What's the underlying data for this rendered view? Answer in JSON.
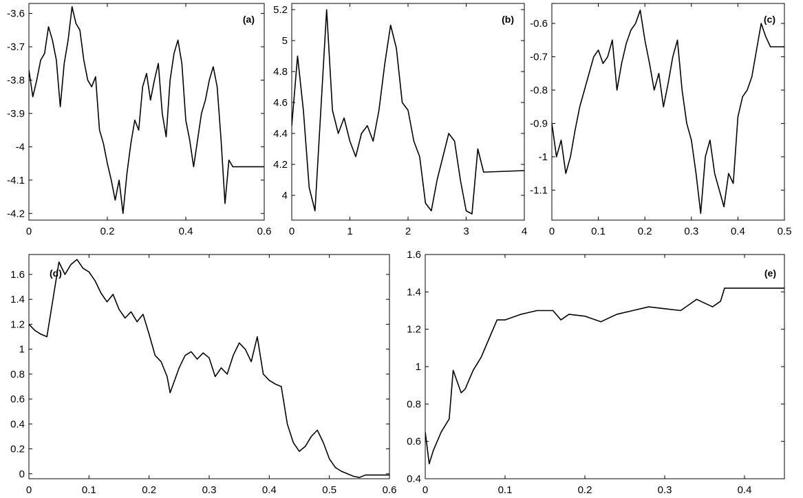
{
  "chart_data": [
    {
      "type": "line",
      "panel_label": "(a)",
      "xlim": [
        0,
        0.6
      ],
      "ylim": [
        -4.22,
        -3.57
      ],
      "xticks": [
        0,
        0.2,
        0.4,
        0.6
      ],
      "xtick_labels": [
        "0",
        "0.2",
        "0.4",
        "0.6"
      ],
      "yticks": [
        -3.6,
        -3.7,
        -3.8,
        -3.9,
        -4.0,
        -4.1,
        -4.2
      ],
      "ytick_labels": [
        "-3.6",
        "-3.7",
        "-3.8",
        "-3.9",
        "-4",
        "-4.1",
        "-4.2"
      ],
      "series": [
        {
          "x": [
            0,
            0.01,
            0.02,
            0.03,
            0.04,
            0.05,
            0.06,
            0.07,
            0.08,
            0.09,
            0.1,
            0.11,
            0.12,
            0.13,
            0.14,
            0.15,
            0.16,
            0.17,
            0.18,
            0.19,
            0.2,
            0.21,
            0.22,
            0.23,
            0.24,
            0.25,
            0.26,
            0.27,
            0.28,
            0.29,
            0.3,
            0.31,
            0.32,
            0.33,
            0.34,
            0.35,
            0.36,
            0.37,
            0.38,
            0.39,
            0.4,
            0.41,
            0.42,
            0.43,
            0.44,
            0.45,
            0.46,
            0.47,
            0.48,
            0.49,
            0.5,
            0.51,
            0.52,
            0.6
          ],
          "y": [
            -3.77,
            -3.85,
            -3.8,
            -3.74,
            -3.72,
            -3.64,
            -3.68,
            -3.74,
            -3.88,
            -3.75,
            -3.68,
            -3.58,
            -3.63,
            -3.65,
            -3.74,
            -3.8,
            -3.82,
            -3.79,
            -3.95,
            -3.99,
            -4.05,
            -4.1,
            -4.16,
            -4.1,
            -4.2,
            -4.08,
            -3.99,
            -3.92,
            -3.95,
            -3.82,
            -3.78,
            -3.86,
            -3.8,
            -3.75,
            -3.9,
            -3.97,
            -3.8,
            -3.72,
            -3.68,
            -3.75,
            -3.92,
            -3.98,
            -4.06,
            -3.98,
            -3.9,
            -3.86,
            -3.8,
            -3.76,
            -3.82,
            -3.98,
            -4.17,
            -4.04,
            -4.06,
            -4.06
          ]
        }
      ]
    },
    {
      "type": "line",
      "panel_label": "(b)",
      "xlim": [
        0,
        4
      ],
      "ylim": [
        3.84,
        5.24
      ],
      "xticks": [
        0,
        1,
        2,
        3,
        4
      ],
      "xtick_labels": [
        "0",
        "1",
        "2",
        "3",
        "4"
      ],
      "yticks": [
        4.0,
        4.2,
        4.4,
        4.6,
        4.8,
        5.0,
        5.2
      ],
      "ytick_labels": [
        "4",
        "4.2",
        "4.4",
        "4.6",
        "4.8",
        "5",
        "5.2"
      ],
      "series": [
        {
          "x": [
            0,
            0.1,
            0.2,
            0.3,
            0.4,
            0.5,
            0.6,
            0.7,
            0.8,
            0.9,
            1.0,
            1.1,
            1.2,
            1.3,
            1.4,
            1.5,
            1.6,
            1.7,
            1.8,
            1.9,
            2.0,
            2.1,
            2.2,
            2.3,
            2.4,
            2.5,
            2.6,
            2.7,
            2.8,
            2.9,
            3.0,
            3.1,
            3.2,
            3.3,
            4.0
          ],
          "y": [
            4.45,
            4.9,
            4.55,
            4.05,
            3.9,
            4.55,
            5.2,
            4.55,
            4.4,
            4.5,
            4.35,
            4.25,
            4.4,
            4.45,
            4.35,
            4.55,
            4.85,
            5.1,
            4.95,
            4.6,
            4.55,
            4.35,
            4.25,
            3.95,
            3.9,
            4.1,
            4.25,
            4.4,
            4.35,
            4.1,
            3.9,
            3.88,
            4.3,
            4.15,
            4.16
          ]
        }
      ]
    },
    {
      "type": "line",
      "panel_label": "(c)",
      "xlim": [
        0,
        0.5
      ],
      "ylim": [
        -1.19,
        -0.54
      ],
      "xticks": [
        0,
        0.1,
        0.2,
        0.3,
        0.4,
        0.5
      ],
      "xtick_labels": [
        "0",
        "0.1",
        "0.2",
        "0.3",
        "0.4",
        "0.5"
      ],
      "yticks": [
        -0.6,
        -0.7,
        -0.8,
        -0.9,
        -1.0,
        -1.1
      ],
      "ytick_labels": [
        "-0.6",
        "-0.7",
        "-0.8",
        "-0.9",
        "-1",
        "-1.1"
      ],
      "series": [
        {
          "x": [
            0,
            0.01,
            0.02,
            0.03,
            0.04,
            0.05,
            0.06,
            0.07,
            0.08,
            0.09,
            0.1,
            0.11,
            0.12,
            0.13,
            0.14,
            0.15,
            0.16,
            0.17,
            0.18,
            0.19,
            0.2,
            0.21,
            0.22,
            0.23,
            0.24,
            0.25,
            0.26,
            0.27,
            0.28,
            0.29,
            0.3,
            0.31,
            0.32,
            0.33,
            0.34,
            0.35,
            0.36,
            0.37,
            0.38,
            0.39,
            0.4,
            0.41,
            0.42,
            0.43,
            0.44,
            0.45,
            0.46,
            0.47,
            0.5
          ],
          "y": [
            -0.9,
            -1.0,
            -0.95,
            -1.05,
            -1.0,
            -0.92,
            -0.85,
            -0.8,
            -0.75,
            -0.7,
            -0.68,
            -0.72,
            -0.7,
            -0.65,
            -0.8,
            -0.72,
            -0.66,
            -0.62,
            -0.6,
            -0.56,
            -0.65,
            -0.72,
            -0.8,
            -0.75,
            -0.85,
            -0.78,
            -0.7,
            -0.65,
            -0.8,
            -0.9,
            -0.95,
            -1.05,
            -1.17,
            -1.0,
            -0.95,
            -1.05,
            -1.1,
            -1.15,
            -1.05,
            -1.08,
            -0.88,
            -0.82,
            -0.8,
            -0.76,
            -0.68,
            -0.6,
            -0.64,
            -0.67,
            -0.67
          ]
        }
      ]
    },
    {
      "type": "line",
      "panel_label": "(d)",
      "xlim": [
        0,
        0.6
      ],
      "ylim": [
        -0.04,
        1.76
      ],
      "xticks": [
        0,
        0.1,
        0.2,
        0.3,
        0.4,
        0.5,
        0.6
      ],
      "xtick_labels": [
        "0",
        "0.1",
        "0.2",
        "0.3",
        "0.4",
        "0.5",
        "0.6"
      ],
      "yticks": [
        0,
        0.2,
        0.4,
        0.6,
        0.8,
        1.0,
        1.2,
        1.4,
        1.6
      ],
      "ytick_labels": [
        "0",
        "0.2",
        "0.4",
        "0.6",
        "0.8",
        "1",
        "1.2",
        "1.4",
        "1.6"
      ],
      "series": [
        {
          "x": [
            0,
            0.01,
            0.02,
            0.03,
            0.04,
            0.05,
            0.06,
            0.07,
            0.08,
            0.09,
            0.1,
            0.11,
            0.12,
            0.13,
            0.14,
            0.15,
            0.16,
            0.17,
            0.18,
            0.19,
            0.2,
            0.21,
            0.22,
            0.23,
            0.235,
            0.25,
            0.26,
            0.27,
            0.28,
            0.29,
            0.3,
            0.31,
            0.32,
            0.33,
            0.34,
            0.35,
            0.36,
            0.37,
            0.38,
            0.39,
            0.4,
            0.41,
            0.42,
            0.43,
            0.44,
            0.45,
            0.46,
            0.47,
            0.48,
            0.49,
            0.5,
            0.51,
            0.52,
            0.53,
            0.54,
            0.55,
            0.56,
            0.6
          ],
          "y": [
            1.2,
            1.15,
            1.12,
            1.1,
            1.4,
            1.7,
            1.6,
            1.68,
            1.72,
            1.65,
            1.62,
            1.55,
            1.45,
            1.38,
            1.44,
            1.32,
            1.25,
            1.3,
            1.22,
            1.28,
            1.12,
            0.95,
            0.9,
            0.78,
            0.65,
            0.85,
            0.95,
            0.98,
            0.92,
            0.97,
            0.93,
            0.78,
            0.85,
            0.8,
            0.95,
            1.05,
            1.0,
            0.9,
            1.1,
            0.8,
            0.75,
            0.72,
            0.7,
            0.4,
            0.25,
            0.18,
            0.22,
            0.3,
            0.35,
            0.25,
            0.12,
            0.05,
            0.02,
            0.0,
            -0.02,
            -0.03,
            -0.01,
            -0.01
          ]
        }
      ]
    },
    {
      "type": "line",
      "panel_label": "(e)",
      "xlim": [
        0,
        0.45
      ],
      "ylim": [
        0.4,
        1.6
      ],
      "xticks": [
        0,
        0.1,
        0.2,
        0.3,
        0.4
      ],
      "xtick_labels": [
        "0",
        "0.1",
        "0.2",
        "0.3",
        "0.4"
      ],
      "yticks": [
        0.4,
        0.6,
        0.8,
        1.0,
        1.2,
        1.4,
        1.6
      ],
      "ytick_labels": [
        "0.4",
        "0.6",
        "0.8",
        "1",
        "1.2",
        "1.4",
        "1.6"
      ],
      "series": [
        {
          "x": [
            0,
            0.005,
            0.01,
            0.02,
            0.03,
            0.035,
            0.04,
            0.045,
            0.05,
            0.06,
            0.07,
            0.075,
            0.08,
            0.09,
            0.1,
            0.12,
            0.14,
            0.16,
            0.17,
            0.18,
            0.2,
            0.22,
            0.24,
            0.26,
            0.28,
            0.3,
            0.32,
            0.33,
            0.34,
            0.36,
            0.37,
            0.375,
            0.45
          ],
          "y": [
            0.65,
            0.48,
            0.55,
            0.65,
            0.72,
            0.98,
            0.92,
            0.86,
            0.88,
            0.98,
            1.05,
            1.1,
            1.15,
            1.25,
            1.25,
            1.28,
            1.3,
            1.3,
            1.25,
            1.28,
            1.27,
            1.24,
            1.28,
            1.3,
            1.32,
            1.31,
            1.3,
            1.33,
            1.36,
            1.32,
            1.35,
            1.42,
            1.42
          ]
        }
      ]
    }
  ]
}
